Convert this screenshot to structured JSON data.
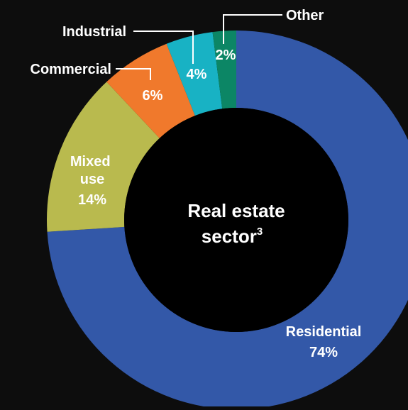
{
  "chart_data": {
    "type": "pie",
    "variant": "donut",
    "center_label": {
      "line1": "Real estate",
      "line2": "sector",
      "superscript": "3"
    },
    "slices": [
      {
        "label": "Residential",
        "value": 74,
        "value_label": "74%",
        "color": "#3358a8"
      },
      {
        "label": "Mixed use",
        "value": 14,
        "value_label": "14%",
        "color": "#b9ba4e"
      },
      {
        "label": "Commercial",
        "value": 6,
        "value_label": "6%",
        "color": "#f0792c"
      },
      {
        "label": "Industrial",
        "value": 4,
        "value_label": "4%",
        "color": "#18b2c4"
      },
      {
        "label": "Other",
        "value": 2,
        "value_label": "2%",
        "color": "#0c8665"
      }
    ],
    "background": "#0d0d0d",
    "text_color": "#ffffff"
  }
}
